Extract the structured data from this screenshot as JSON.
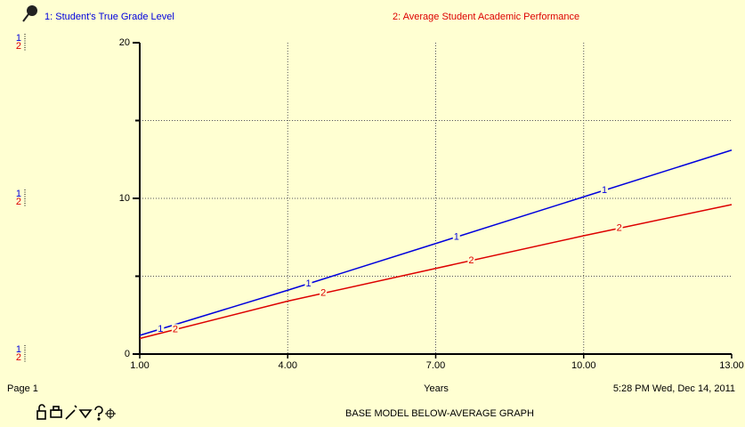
{
  "chart_data": {
    "type": "line",
    "series": [
      {
        "name": "1: Student's True Grade Level",
        "marker": "1",
        "color": "#0000dd",
        "values": [
          1.2,
          4.1,
          7.1,
          10.1,
          13.1
        ]
      },
      {
        "name": "2: Average Student Academic Performance",
        "marker": "2",
        "color": "#dd0000",
        "values": [
          1.0,
          3.4,
          5.5,
          7.6,
          9.6
        ]
      }
    ],
    "x": [
      1,
      4,
      7,
      10,
      13
    ],
    "xlim": [
      1,
      13
    ],
    "xticks": [
      {
        "value": 1,
        "label": "1.00"
      },
      {
        "value": 4,
        "label": "4.00"
      },
      {
        "value": 7,
        "label": "7.00"
      },
      {
        "value": 10,
        "label": "10.00"
      },
      {
        "value": 13,
        "label": "13.00"
      }
    ],
    "ylim": [
      0,
      20
    ],
    "yticks": [
      0,
      10,
      20
    ],
    "yticks_minor": [
      5,
      15
    ],
    "grid": true,
    "xlabel": "Years",
    "page": "Page 1",
    "timestamp": "5:28 PM   Wed, Dec 14, 2011",
    "title": "BASE MODEL BELOW-AVERAGE GRAPH"
  }
}
